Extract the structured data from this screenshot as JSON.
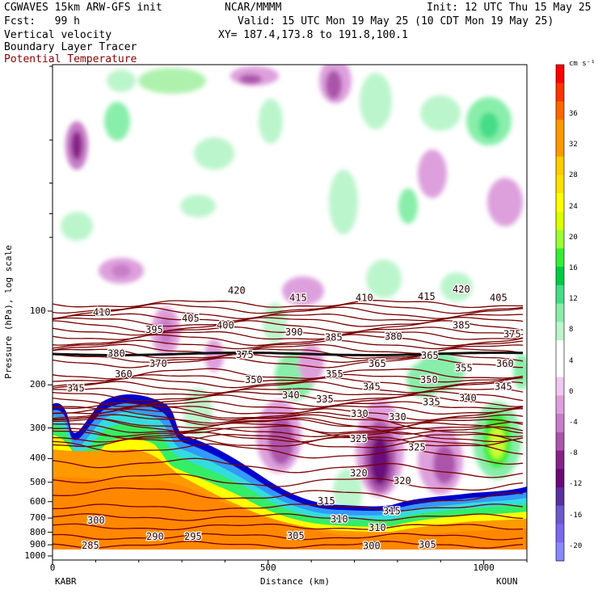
{
  "header": {
    "model": "CGWAVES 15km ARW-GFS init",
    "forecast": "Fcst:   99 h",
    "field1": "Vertical velocity",
    "field2": "Boundary Layer Tracer",
    "field3": "Potential Temperature",
    "org": "NCAR/MMMM",
    "init": "Init: 12 UTC Thu 15 May 25",
    "valid": "Valid: 15 UTC Mon 19 May 25 (10 CDT Mon 19 May 25)",
    "xy": "XY= 187.4,173.8 to 191.8,100.1"
  },
  "colors": {
    "theta": "#7a0000",
    "title3": "#8a0000"
  },
  "chart_data": {
    "type": "heatmap",
    "xlabel": "Distance (km)",
    "ylabel": "Pressure (hPa), log scale",
    "x_start_label": "KABR",
    "x_end_label": "KOUN",
    "xlim": [
      0,
      1100
    ],
    "x_ticks": [
      0,
      500,
      1000
    ],
    "y_ticks": [
      100,
      200,
      300,
      400,
      500,
      600,
      700,
      800,
      900,
      1000
    ],
    "y_scale": "log",
    "colorbar": {
      "unit": "cm s⁻¹",
      "labels": [
        36,
        32,
        28,
        24,
        20,
        16,
        12,
        8,
        4,
        0,
        -4,
        -8,
        -12,
        -16,
        -20
      ],
      "colors": [
        "#ff0000",
        "#ff3300",
        "#ff6600",
        "#ff9900",
        "#ff9900",
        "#ffcc00",
        "#ffe000",
        "#ffff00",
        "#ddff00",
        "#99ff33",
        "#33ee33",
        "#00cc44",
        "#44dd88",
        "#88eeaa",
        "#bbf5cc",
        "#ffffff",
        "#ffffff",
        "#f0c8f0",
        "#dda0dd",
        "#c77dc7",
        "#aa55aa",
        "#882288",
        "#6a0a7a",
        "#5a30a0",
        "#6a5acd",
        "#7b68ee",
        "#8888ff"
      ]
    },
    "theta_labels": [
      {
        "v": "420",
        "x": 282,
        "p": 83
      },
      {
        "v": "415",
        "x": 358,
        "p": 89
      },
      {
        "v": "410",
        "x": 440,
        "p": 89
      },
      {
        "v": "415",
        "x": 517,
        "p": 88
      },
      {
        "v": "420",
        "x": 560,
        "p": 82
      },
      {
        "v": "405",
        "x": 606,
        "p": 89
      },
      {
        "v": "410",
        "x": 115,
        "p": 102
      },
      {
        "v": "405",
        "x": 225,
        "p": 108
      },
      {
        "v": "395",
        "x": 180,
        "p": 120
      },
      {
        "v": "400",
        "x": 268,
        "p": 115
      },
      {
        "v": "390",
        "x": 353,
        "p": 123
      },
      {
        "v": "385",
        "x": 402,
        "p": 129
      },
      {
        "v": "380",
        "x": 476,
        "p": 128
      },
      {
        "v": "385",
        "x": 560,
        "p": 115
      },
      {
        "v": "375",
        "x": 623,
        "p": 125
      },
      {
        "v": "380",
        "x": 133,
        "p": 150
      },
      {
        "v": "370",
        "x": 185,
        "p": 165
      },
      {
        "v": "375",
        "x": 292,
        "p": 152
      },
      {
        "v": "365",
        "x": 456,
        "p": 165
      },
      {
        "v": "365",
        "x": 521,
        "p": 153
      },
      {
        "v": "355",
        "x": 563,
        "p": 172
      },
      {
        "v": "360",
        "x": 614,
        "p": 165
      },
      {
        "v": "360",
        "x": 142,
        "p": 182
      },
      {
        "v": "350",
        "x": 303,
        "p": 192
      },
      {
        "v": "355",
        "x": 403,
        "p": 182
      },
      {
        "v": "350",
        "x": 520,
        "p": 192
      },
      {
        "v": "345",
        "x": 83,
        "p": 208
      },
      {
        "v": "345",
        "x": 449,
        "p": 205
      },
      {
        "v": "345",
        "x": 612,
        "p": 205
      },
      {
        "v": "340",
        "x": 349,
        "p": 222
      },
      {
        "v": "335",
        "x": 391,
        "p": 231
      },
      {
        "v": "335",
        "x": 523,
        "p": 237
      },
      {
        "v": "340",
        "x": 568,
        "p": 228
      },
      {
        "v": "330",
        "x": 434,
        "p": 265
      },
      {
        "v": "330",
        "x": 481,
        "p": 273
      },
      {
        "v": "325",
        "x": 433,
        "p": 335
      },
      {
        "v": "325",
        "x": 505,
        "p": 363
      },
      {
        "v": "320",
        "x": 433,
        "p": 462
      },
      {
        "v": "320",
        "x": 487,
        "p": 497
      },
      {
        "v": "315",
        "x": 393,
        "p": 600
      },
      {
        "v": "315",
        "x": 474,
        "p": 660
      },
      {
        "v": "310",
        "x": 409,
        "p": 713
      },
      {
        "v": "310",
        "x": 456,
        "p": 772
      },
      {
        "v": "305",
        "x": 355,
        "p": 833
      },
      {
        "v": "305",
        "x": 518,
        "p": 906
      },
      {
        "v": "300",
        "x": 108,
        "p": 722
      },
      {
        "v": "300",
        "x": 449,
        "p": 918
      },
      {
        "v": "290",
        "x": 181,
        "p": 840
      },
      {
        "v": "295",
        "x": 228,
        "p": 840
      },
      {
        "v": "285",
        "x": 101,
        "p": 912
      }
    ]
  }
}
